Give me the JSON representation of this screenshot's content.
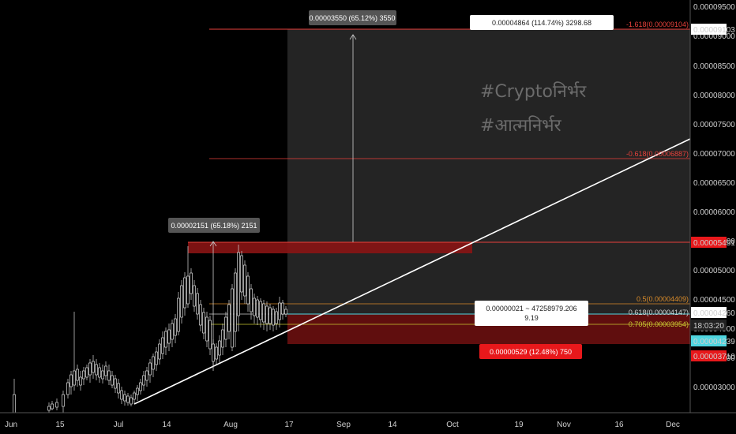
{
  "chart_data": {
    "type": "candlestick",
    "xaxis": {
      "tick_labels": [
        "Jun",
        "15",
        "Jul",
        "14",
        "Aug",
        "17",
        "Sep",
        "14",
        "Oct",
        "19",
        "Nov",
        "16",
        "Dec"
      ]
    },
    "yaxis": {
      "range": [
        2.6e-06,
        9.7e-06
      ],
      "tick_labels": [
        "0.00009500",
        "0.00009000",
        "0.00008500",
        "0.00008000",
        "0.00007500",
        "0.00007000",
        "0.00006500",
        "0.00006000",
        "0.00005500",
        "0.00005000",
        "0.00004500",
        "0.00004000",
        "0.00003500",
        "0.00003000"
      ]
    },
    "price_markers": [
      {
        "label": "0.00009103",
        "style": "white"
      },
      {
        "label": "0.00005451",
        "style": "red"
      },
      {
        "label": "0.00004260",
        "style": "white"
      },
      {
        "label": "18:03:20",
        "style": "dark"
      },
      {
        "label": "0.00004239",
        "style": "cyan"
      },
      {
        "label": "0.00003710",
        "style": "red"
      }
    ],
    "fib_levels": [
      {
        "label": "-1.618(0.00009104)",
        "color": "#e8413b"
      },
      {
        "label": "-0.618(0.00006887)",
        "color": "#e8413b"
      },
      {
        "label": "0.5(0.00004409)",
        "color": "#d98b2a"
      },
      {
        "label": "0.618(0.00004147)",
        "color": "#cfcfcf"
      },
      {
        "label": "0.705(0.00003954)",
        "color": "#c8c832"
      }
    ],
    "measure_labels": {
      "top_left": "0.00003550 (65.12%) 3550",
      "top_right": "0.00004864 (114.74%) 3298.68",
      "mid": "0.00002151 (65.18%) 2151",
      "cursor_line1": "0.00000021 ~ 47258979.206",
      "cursor_line2": "9.19",
      "stop": "0.00000529 (12.48%) 750"
    },
    "watermarks": [
      "#Cryptoनिर्भर",
      "#आत्मनिर्भर"
    ],
    "colors": {
      "background": "#000000",
      "candle_up": "#ffffff",
      "candle_down": "#ffffff",
      "red": "#e8413b",
      "cyan": "#4fd6e0"
    }
  }
}
